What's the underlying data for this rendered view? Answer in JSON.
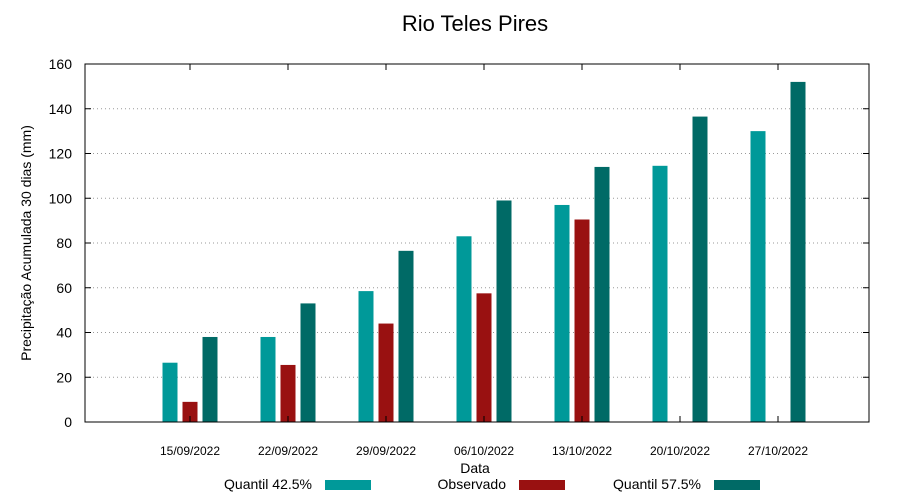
{
  "chart_data": {
    "type": "bar",
    "title": "Rio Teles Pires",
    "xlabel": "Data",
    "ylabel": "Precipitação Acumulada 30 dias (mm)",
    "ylim": [
      0,
      160
    ],
    "yticks": [
      0,
      20,
      40,
      60,
      80,
      100,
      120,
      140,
      160
    ],
    "grid": true,
    "legend_position": "bottom",
    "categories": [
      "15/09/2022",
      "22/09/2022",
      "29/09/2022",
      "06/10/2022",
      "13/10/2022",
      "20/10/2022",
      "27/10/2022"
    ],
    "series": [
      {
        "name": "Quantil 42.5%",
        "color": "#009999",
        "values": [
          26.5,
          38,
          58.5,
          83,
          97,
          114.5,
          130
        ]
      },
      {
        "name": "Observado",
        "color": "#991111",
        "values": [
          9,
          25.5,
          44,
          57.5,
          90.5,
          null,
          null
        ]
      },
      {
        "name": "Quantil 57.5%",
        "color": "#006a66",
        "values": [
          38,
          53,
          76.5,
          99,
          114,
          136.5,
          152
        ]
      }
    ]
  }
}
